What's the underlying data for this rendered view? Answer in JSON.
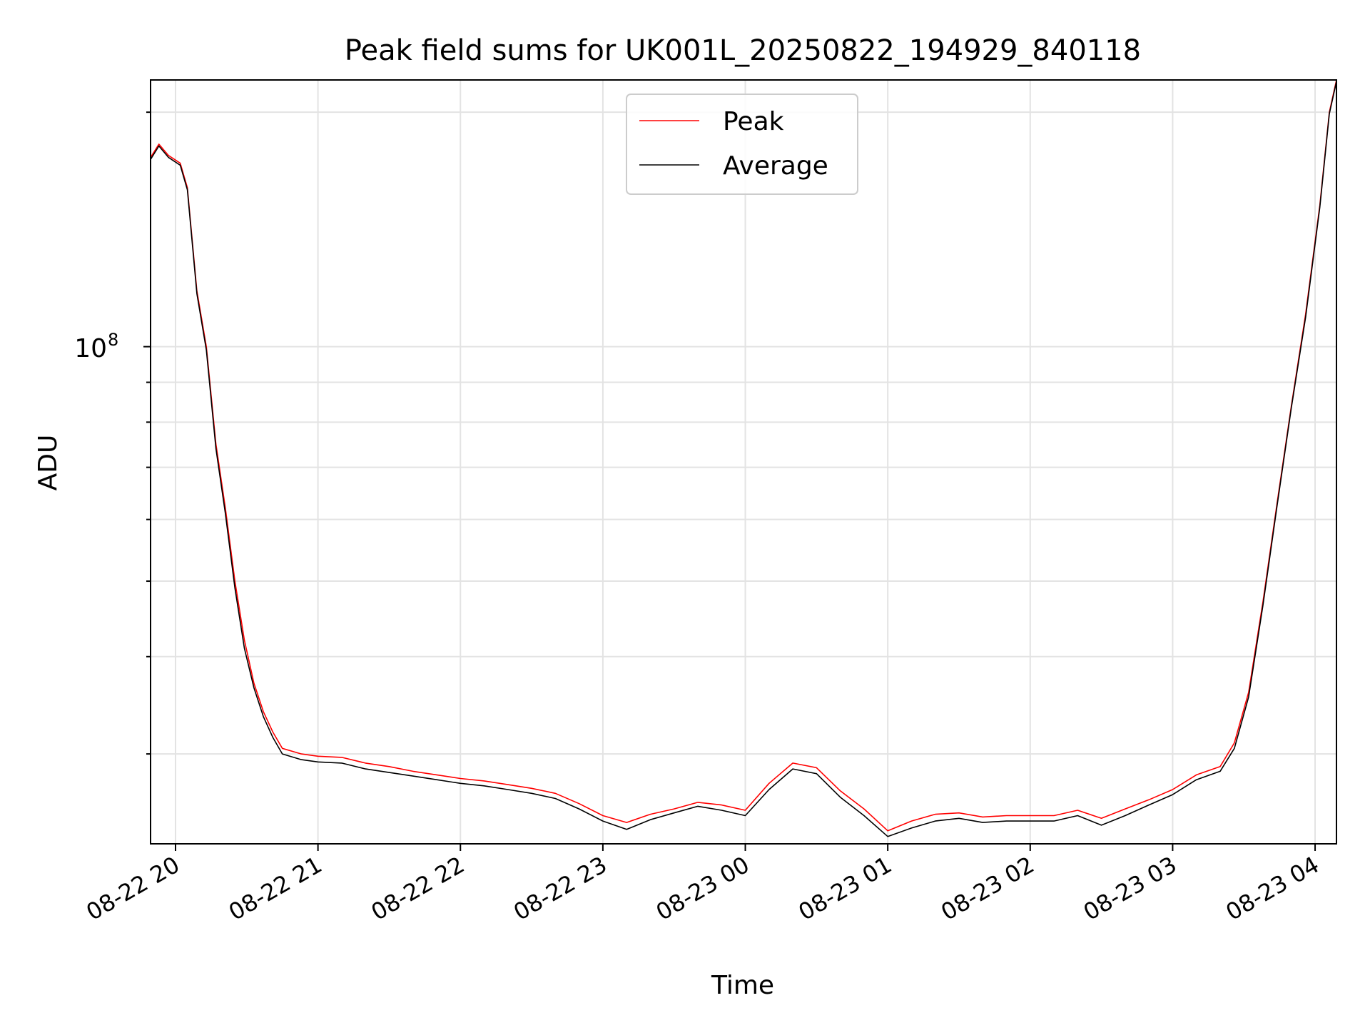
{
  "chart_data": {
    "type": "line",
    "title": "Peak field sums for UK001L_20250822_194929_840118",
    "xlabel": "Time",
    "ylabel": "ADU",
    "yscale": "log",
    "ylim": [
      23000000,
      220000000
    ],
    "xlim": [
      "2025-08-22 19:49:29",
      "2025-08-23 04:09:00"
    ],
    "grid": true,
    "legend_position": "upper center",
    "x_ticks": [
      {
        "label": "08-22 20",
        "time": "2025-08-22 20:00"
      },
      {
        "label": "08-22 21",
        "time": "2025-08-22 21:00"
      },
      {
        "label": "08-22 22",
        "time": "2025-08-22 22:00"
      },
      {
        "label": "08-22 23",
        "time": "2025-08-22 23:00"
      },
      {
        "label": "08-23 00",
        "time": "2025-08-23 00:00"
      },
      {
        "label": "08-23 01",
        "time": "2025-08-23 01:00"
      },
      {
        "label": "08-23 02",
        "time": "2025-08-23 02:00"
      },
      {
        "label": "08-23 03",
        "time": "2025-08-23 03:00"
      },
      {
        "label": "08-23 04",
        "time": "2025-08-23 04:00"
      }
    ],
    "y_tick_label": {
      "base": "10",
      "exponent": "8",
      "value": 100000000
    },
    "series": [
      {
        "name": "Peak",
        "color": "#ff0000",
        "points": [
          [
            "2025-08-22 19:49",
            174000000
          ],
          [
            "2025-08-22 19:53",
            182000000
          ],
          [
            "2025-08-22 19:57",
            176000000
          ],
          [
            "2025-08-22 20:02",
            172000000
          ],
          [
            "2025-08-22 20:05",
            160000000
          ],
          [
            "2025-08-22 20:09",
            118000000
          ],
          [
            "2025-08-22 20:13",
            100000000
          ],
          [
            "2025-08-22 20:17",
            75000000
          ],
          [
            "2025-08-22 20:21",
            62000000
          ],
          [
            "2025-08-22 20:25",
            50000000
          ],
          [
            "2025-08-22 20:29",
            42000000
          ],
          [
            "2025-08-22 20:33",
            37000000
          ],
          [
            "2025-08-22 20:37",
            34000000
          ],
          [
            "2025-08-22 20:41",
            32000000
          ],
          [
            "2025-08-22 20:45",
            30500000
          ],
          [
            "2025-08-22 20:53",
            30000000
          ],
          [
            "2025-08-22 21:00",
            29800000
          ],
          [
            "2025-08-22 21:10",
            29700000
          ],
          [
            "2025-08-22 21:20",
            29200000
          ],
          [
            "2025-08-22 21:30",
            28900000
          ],
          [
            "2025-08-22 21:40",
            28500000
          ],
          [
            "2025-08-22 21:50",
            28200000
          ],
          [
            "2025-08-22 22:00",
            27900000
          ],
          [
            "2025-08-22 22:10",
            27700000
          ],
          [
            "2025-08-22 22:20",
            27400000
          ],
          [
            "2025-08-22 22:30",
            27100000
          ],
          [
            "2025-08-22 22:40",
            26700000
          ],
          [
            "2025-08-22 22:50",
            25900000
          ],
          [
            "2025-08-22 23:00",
            25000000
          ],
          [
            "2025-08-22 23:10",
            24500000
          ],
          [
            "2025-08-22 23:20",
            25100000
          ],
          [
            "2025-08-22 23:30",
            25500000
          ],
          [
            "2025-08-22 23:40",
            26000000
          ],
          [
            "2025-08-22 23:50",
            25800000
          ],
          [
            "2025-08-23 00:00",
            25400000
          ],
          [
            "2025-08-23 00:10",
            27500000
          ],
          [
            "2025-08-23 00:20",
            29200000
          ],
          [
            "2025-08-23 00:30",
            28800000
          ],
          [
            "2025-08-23 00:40",
            26900000
          ],
          [
            "2025-08-23 00:50",
            25500000
          ],
          [
            "2025-08-23 01:00",
            23900000
          ],
          [
            "2025-08-23 01:10",
            24600000
          ],
          [
            "2025-08-23 01:20",
            25100000
          ],
          [
            "2025-08-23 01:30",
            25200000
          ],
          [
            "2025-08-23 01:40",
            24900000
          ],
          [
            "2025-08-23 01:50",
            25000000
          ],
          [
            "2025-08-23 02:00",
            25000000
          ],
          [
            "2025-08-23 02:10",
            25000000
          ],
          [
            "2025-08-23 02:20",
            25400000
          ],
          [
            "2025-08-23 02:30",
            24800000
          ],
          [
            "2025-08-23 02:40",
            25500000
          ],
          [
            "2025-08-23 02:50",
            26200000
          ],
          [
            "2025-08-23 03:00",
            27000000
          ],
          [
            "2025-08-23 03:10",
            28200000
          ],
          [
            "2025-08-23 03:20",
            28900000
          ],
          [
            "2025-08-23 03:26",
            31000000
          ],
          [
            "2025-08-23 03:32",
            36000000
          ],
          [
            "2025-08-23 03:38",
            47000000
          ],
          [
            "2025-08-23 03:44",
            63000000
          ],
          [
            "2025-08-23 03:50",
            84000000
          ],
          [
            "2025-08-23 03:56",
            110000000
          ],
          [
            "2025-08-23 04:02",
            152000000
          ],
          [
            "2025-08-23 04:06",
            200000000
          ],
          [
            "2025-08-23 04:09",
            220000000
          ]
        ]
      },
      {
        "name": "Average",
        "color": "#000000",
        "points": [
          [
            "2025-08-22 19:49",
            173000000
          ],
          [
            "2025-08-22 19:53",
            181000000
          ],
          [
            "2025-08-22 19:57",
            175000000
          ],
          [
            "2025-08-22 20:02",
            171000000
          ],
          [
            "2025-08-22 20:05",
            159000000
          ],
          [
            "2025-08-22 20:09",
            117000000
          ],
          [
            "2025-08-22 20:13",
            99000000
          ],
          [
            "2025-08-22 20:17",
            74000000
          ],
          [
            "2025-08-22 20:21",
            61000000
          ],
          [
            "2025-08-22 20:25",
            49000000
          ],
          [
            "2025-08-22 20:29",
            41000000
          ],
          [
            "2025-08-22 20:33",
            36500000
          ],
          [
            "2025-08-22 20:37",
            33500000
          ],
          [
            "2025-08-22 20:41",
            31500000
          ],
          [
            "2025-08-22 20:45",
            30000000
          ],
          [
            "2025-08-22 20:53",
            29500000
          ],
          [
            "2025-08-22 21:00",
            29300000
          ],
          [
            "2025-08-22 21:10",
            29200000
          ],
          [
            "2025-08-22 21:20",
            28700000
          ],
          [
            "2025-08-22 21:30",
            28400000
          ],
          [
            "2025-08-22 21:40",
            28100000
          ],
          [
            "2025-08-22 21:50",
            27800000
          ],
          [
            "2025-08-22 22:00",
            27500000
          ],
          [
            "2025-08-22 22:10",
            27300000
          ],
          [
            "2025-08-22 22:20",
            27000000
          ],
          [
            "2025-08-22 22:30",
            26700000
          ],
          [
            "2025-08-22 22:40",
            26300000
          ],
          [
            "2025-08-22 22:50",
            25500000
          ],
          [
            "2025-08-22 23:00",
            24600000
          ],
          [
            "2025-08-22 23:10",
            24000000
          ],
          [
            "2025-08-22 23:20",
            24700000
          ],
          [
            "2025-08-22 23:30",
            25200000
          ],
          [
            "2025-08-22 23:40",
            25700000
          ],
          [
            "2025-08-22 23:50",
            25400000
          ],
          [
            "2025-08-23 00:00",
            25000000
          ],
          [
            "2025-08-23 00:10",
            27000000
          ],
          [
            "2025-08-23 00:20",
            28700000
          ],
          [
            "2025-08-23 00:30",
            28300000
          ],
          [
            "2025-08-23 00:40",
            26400000
          ],
          [
            "2025-08-23 00:50",
            25000000
          ],
          [
            "2025-08-23 01:00",
            23500000
          ],
          [
            "2025-08-23 01:10",
            24100000
          ],
          [
            "2025-08-23 01:20",
            24600000
          ],
          [
            "2025-08-23 01:30",
            24800000
          ],
          [
            "2025-08-23 01:40",
            24500000
          ],
          [
            "2025-08-23 01:50",
            24600000
          ],
          [
            "2025-08-23 02:00",
            24600000
          ],
          [
            "2025-08-23 02:10",
            24600000
          ],
          [
            "2025-08-23 02:20",
            25000000
          ],
          [
            "2025-08-23 02:30",
            24300000
          ],
          [
            "2025-08-23 02:40",
            25000000
          ],
          [
            "2025-08-23 02:50",
            25800000
          ],
          [
            "2025-08-23 03:00",
            26600000
          ],
          [
            "2025-08-23 03:10",
            27800000
          ],
          [
            "2025-08-23 03:20",
            28500000
          ],
          [
            "2025-08-23 03:26",
            30500000
          ],
          [
            "2025-08-23 03:32",
            35500000
          ],
          [
            "2025-08-23 03:38",
            46500000
          ],
          [
            "2025-08-23 03:44",
            62500000
          ],
          [
            "2025-08-23 03:50",
            83500000
          ],
          [
            "2025-08-23 03:56",
            109000000
          ],
          [
            "2025-08-23 04:02",
            151000000
          ],
          [
            "2025-08-23 04:06",
            199000000
          ],
          [
            "2025-08-23 04:09",
            219000000
          ]
        ]
      }
    ]
  }
}
